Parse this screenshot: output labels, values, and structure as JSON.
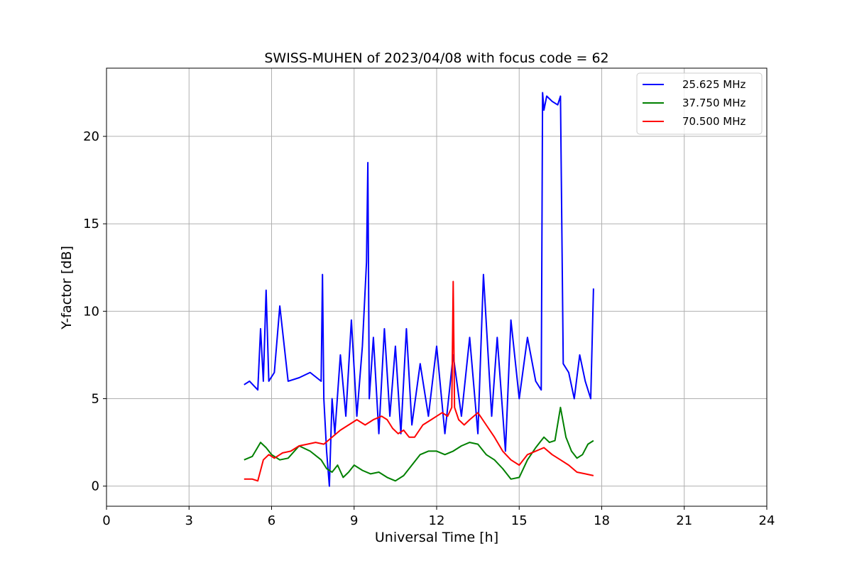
{
  "chart_data": {
    "type": "line",
    "title": "SWISS-MUHEN of 2023/04/08 with focus code = 62",
    "xlabel": "Universal Time [h]",
    "ylabel": "Y-factor [dB]",
    "xlim": [
      0,
      24
    ],
    "ylim": [
      -1.15,
      23.9
    ],
    "xticks": [
      0,
      3,
      6,
      9,
      12,
      15,
      18,
      21,
      24
    ],
    "yticks": [
      0,
      5,
      10,
      15,
      20
    ],
    "grid": true,
    "legend_position": "top-right",
    "series": [
      {
        "name": "25.625 MHz",
        "color": "#0000ff",
        "x": [
          5.0,
          5.2,
          5.5,
          5.6,
          5.7,
          5.8,
          5.9,
          6.1,
          6.3,
          6.6,
          7.0,
          7.4,
          7.8,
          7.85,
          7.9,
          8.0,
          8.1,
          8.2,
          8.3,
          8.5,
          8.7,
          8.9,
          9.1,
          9.3,
          9.45,
          9.5,
          9.55,
          9.7,
          9.9,
          10.1,
          10.3,
          10.5,
          10.7,
          10.9,
          11.1,
          11.4,
          11.7,
          12.0,
          12.3,
          12.6,
          12.9,
          13.2,
          13.5,
          13.7,
          14.0,
          14.2,
          14.5,
          14.7,
          15.0,
          15.3,
          15.6,
          15.8,
          15.85,
          15.9,
          16.0,
          16.2,
          16.4,
          16.5,
          16.6,
          16.8,
          17.0,
          17.2,
          17.4,
          17.6,
          17.7
        ],
        "y": [
          5.8,
          6.0,
          5.5,
          9.0,
          6.0,
          11.2,
          6.0,
          6.5,
          10.3,
          6.0,
          6.2,
          6.5,
          6.0,
          12.1,
          5.0,
          2.0,
          0.0,
          5.0,
          3.0,
          7.5,
          4.0,
          9.5,
          4.0,
          8.0,
          12.8,
          18.5,
          5.0,
          8.5,
          3.0,
          9.0,
          4.0,
          8.0,
          3.0,
          9.0,
          3.5,
          7.0,
          4.0,
          8.0,
          3.0,
          7.5,
          4.0,
          8.5,
          3.0,
          12.1,
          4.0,
          8.5,
          2.0,
          9.5,
          5.0,
          8.5,
          6.0,
          5.5,
          22.5,
          21.5,
          22.3,
          22.0,
          21.8,
          22.3,
          7.0,
          6.5,
          5.0,
          7.5,
          6.0,
          5.0,
          11.3
        ]
      },
      {
        "name": "37.750 MHz",
        "color": "#008000",
        "x": [
          5.0,
          5.3,
          5.6,
          5.8,
          6.0,
          6.3,
          6.6,
          7.0,
          7.4,
          7.8,
          8.0,
          8.2,
          8.4,
          8.6,
          8.8,
          9.0,
          9.3,
          9.6,
          9.9,
          10.2,
          10.5,
          10.8,
          11.1,
          11.4,
          11.7,
          12.0,
          12.3,
          12.6,
          12.9,
          13.2,
          13.5,
          13.8,
          14.1,
          14.4,
          14.7,
          15.0,
          15.3,
          15.6,
          15.9,
          16.1,
          16.3,
          16.5,
          16.7,
          16.9,
          17.1,
          17.3,
          17.5,
          17.7
        ],
        "y": [
          1.5,
          1.7,
          2.5,
          2.2,
          1.8,
          1.5,
          1.6,
          2.3,
          2.0,
          1.5,
          1.0,
          0.8,
          1.2,
          0.5,
          0.8,
          1.2,
          0.9,
          0.7,
          0.8,
          0.5,
          0.3,
          0.6,
          1.2,
          1.8,
          2.0,
          2.0,
          1.8,
          2.0,
          2.3,
          2.5,
          2.4,
          1.8,
          1.5,
          1.0,
          0.4,
          0.5,
          1.5,
          2.2,
          2.8,
          2.5,
          2.6,
          4.5,
          2.8,
          2.0,
          1.6,
          1.8,
          2.4,
          2.6
        ]
      },
      {
        "name": "70.500 MHz",
        "color": "#ff0000",
        "x": [
          5.0,
          5.3,
          5.5,
          5.7,
          5.9,
          6.1,
          6.4,
          6.7,
          7.0,
          7.3,
          7.6,
          7.9,
          8.2,
          8.5,
          8.8,
          9.1,
          9.4,
          9.7,
          10.0,
          10.2,
          10.4,
          10.6,
          10.8,
          11.0,
          11.2,
          11.5,
          11.8,
          12.0,
          12.2,
          12.4,
          12.55,
          12.6,
          12.65,
          12.8,
          13.0,
          13.2,
          13.5,
          13.8,
          14.1,
          14.4,
          14.7,
          15.0,
          15.3,
          15.6,
          15.9,
          16.2,
          16.5,
          16.8,
          17.1,
          17.4,
          17.7
        ],
        "y": [
          0.4,
          0.4,
          0.3,
          1.5,
          1.8,
          1.6,
          1.9,
          2.0,
          2.3,
          2.4,
          2.5,
          2.4,
          2.8,
          3.2,
          3.5,
          3.8,
          3.5,
          3.8,
          4.0,
          3.8,
          3.3,
          3.0,
          3.2,
          2.8,
          2.8,
          3.5,
          3.8,
          4.0,
          4.2,
          4.0,
          4.5,
          11.7,
          4.5,
          3.8,
          3.5,
          3.8,
          4.2,
          3.5,
          2.8,
          2.0,
          1.5,
          1.2,
          1.8,
          2.0,
          2.2,
          1.8,
          1.5,
          1.2,
          0.8,
          0.7,
          0.6
        ]
      }
    ]
  }
}
